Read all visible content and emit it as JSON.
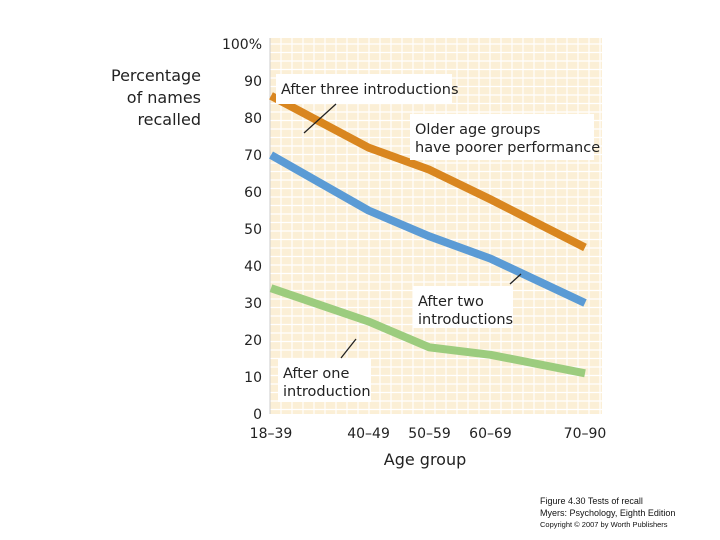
{
  "chart_data": {
    "type": "line",
    "title": "",
    "ylabel_lines": [
      "Percentage",
      "of names",
      "recalled"
    ],
    "xlabel": "Age group",
    "categories": [
      "18–39",
      "40–49",
      "50–59",
      "60–69",
      "70–90"
    ],
    "x_midpoints": [
      28.5,
      44.5,
      54.5,
      64.5,
      80
    ],
    "ylim": [
      0,
      100
    ],
    "yticks": [
      {
        "value": 0,
        "label": "0"
      },
      {
        "value": 10,
        "label": "10"
      },
      {
        "value": 20,
        "label": "20"
      },
      {
        "value": 30,
        "label": "30"
      },
      {
        "value": 40,
        "label": "40"
      },
      {
        "value": 50,
        "label": "50"
      },
      {
        "value": 60,
        "label": "60"
      },
      {
        "value": 70,
        "label": "70"
      },
      {
        "value": 80,
        "label": "80"
      },
      {
        "value": 90,
        "label": "90"
      },
      {
        "value": 100,
        "label": "100%"
      }
    ],
    "series": [
      {
        "name": "After three introductions",
        "color": "#d9861f",
        "values": [
          86,
          72,
          66,
          58,
          45
        ]
      },
      {
        "name": "After two introductions",
        "color": "#5b9bd5",
        "values": [
          70,
          55,
          48,
          42,
          30
        ]
      },
      {
        "name": "After one introduction",
        "color": "#9ccc7e",
        "values": [
          34,
          25,
          18,
          16,
          11
        ]
      }
    ],
    "annotations": [
      {
        "lines": [
          "After three introductions"
        ],
        "series": 0
      },
      {
        "lines": [
          "Older age groups",
          "have poorer performance"
        ]
      },
      {
        "lines": [
          "After two",
          "introductions"
        ],
        "series": 1
      },
      {
        "lines": [
          "After one",
          "introduction"
        ],
        "series": 2
      }
    ],
    "colors": {
      "plot_bg": "#fbefd6",
      "grid": "#ffffff",
      "axis": "#cccccc"
    }
  },
  "caption": {
    "line1": "Figure 4.30 Tests of recall",
    "line2": "Myers: Psychology, Eighth Edition",
    "line3": "Copyright © 2007 by Worth Publishers"
  }
}
